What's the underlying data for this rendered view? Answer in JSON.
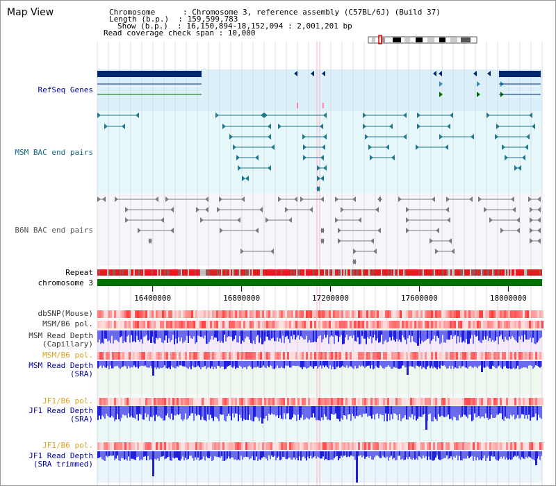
{
  "header": {
    "title": "Map View",
    "lines": [
      "Chromosome      : Chromosome 3, reference assembly (C57BL/6J) (Build 37)",
      "Length (b.p.)  : 159,599,783",
      "Show (b.p.)  : 16,150,894-18,152,094 : 2,001,201 bp",
      "Read coverage check span : 10,000"
    ]
  },
  "axis": {
    "range": [
      16150894,
      18152094
    ],
    "ticks": [
      "16400000",
      "16800000",
      "17200000",
      "17600000",
      "18000000"
    ]
  },
  "colors": {
    "refseq_bg": "#dcf0fa",
    "bac_bg": "#e6f8fa",
    "b6n_bg": "#f4f6fa",
    "chrom": "#007000",
    "refseq": "#00286e",
    "msm_bac": "#1e7890",
    "b6n_bac": "#7a7a7a",
    "snp": "#f04040",
    "depth": "#3c3cdc"
  },
  "tracks": {
    "refseq": "RefSeq Genes",
    "msm_bac": "MSM BAC end pairs",
    "b6n_bac": "B6N BAC end pairs",
    "repeat": "Repeat",
    "chromosome": "chromosome 3",
    "dbsnp": "dbSNP(Mouse)",
    "msm_b6_pol_1": "MSM/B6 pol.",
    "msm_depth_cap_1": "MSM Read Depth",
    "msm_depth_cap_2": "(Capillary)",
    "msm_b6_pol_2": "MSM/B6 pol.",
    "msm_depth_sra_1": "MSM Read Depth",
    "msm_depth_sra_2": "(SRA)",
    "jf1_b6_pol_1": "JF1/B6 pol.",
    "jf1_depth_sra_1": "JF1 Read Depth",
    "jf1_depth_sra_2": "(SRA)",
    "jf1_b6_pol_2": "JF1/B6 pol.",
    "jf1_depth_trim_1": "JF1 Read Depth",
    "jf1_depth_trim_2": "(SRA trimmed)"
  }
}
